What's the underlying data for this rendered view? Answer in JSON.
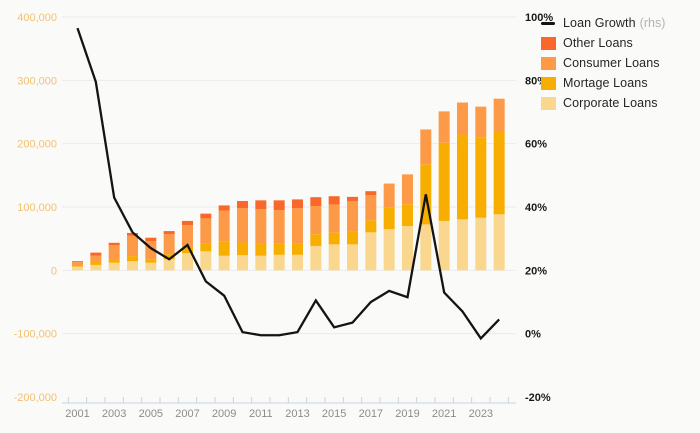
{
  "chart_data": {
    "type": "combo-stacked-bar-line",
    "title": "",
    "x": [
      2001,
      2002,
      2003,
      2004,
      2005,
      2006,
      2007,
      2008,
      2009,
      2010,
      2011,
      2012,
      2013,
      2014,
      2015,
      2016,
      2017,
      2018,
      2019,
      2020,
      2021,
      2022,
      2023,
      2024
    ],
    "x_tick_labels": [
      "2001",
      "2003",
      "2005",
      "2007",
      "2009",
      "2011",
      "2013",
      "2015",
      "2017",
      "2019",
      "2021",
      "2023"
    ],
    "bar_series": [
      {
        "name": "Corporate Loans",
        "color": "#fad78f",
        "values": [
          6000,
          8500,
          12000,
          14500,
          12000,
          17500,
          27000,
          30000,
          23000,
          24000,
          23000,
          24500,
          24500,
          38500,
          41000,
          41000,
          60000,
          65000,
          70000,
          72500,
          78000,
          80500,
          83000,
          88500
        ]
      },
      {
        "name": "Mortage Loans",
        "color": "#f8ae00",
        "values": [
          2500,
          5500,
          5000,
          8000,
          5500,
          8000,
          9000,
          13000,
          23000,
          20000,
          19500,
          18500,
          18500,
          18500,
          18500,
          21000,
          19000,
          34000,
          34500,
          95000,
          123500,
          134000,
          126500,
          131500
        ]
      },
      {
        "name": "Consumer Loans",
        "color": "#fd9a47",
        "values": [
          4500,
          9000,
          22500,
          32000,
          28500,
          31500,
          35500,
          39000,
          48500,
          54000,
          54000,
          52000,
          55000,
          44500,
          44500,
          47500,
          39500,
          38000,
          47000,
          55000,
          49500,
          50500,
          49000,
          51000
        ]
      },
      {
        "name": "Other Loans",
        "color": "#f9682a",
        "values": [
          1500,
          5000,
          4000,
          4500,
          5500,
          5000,
          6500,
          7500,
          8000,
          11500,
          14000,
          15500,
          14000,
          14000,
          13000,
          6500,
          6500,
          0,
          0,
          0,
          0,
          0,
          0,
          0
        ]
      }
    ],
    "line_series": {
      "name": "Loan Growth",
      "suffix": "(rhs)",
      "color": "#141414",
      "axis": "right",
      "values": [
        96.5,
        79.5,
        43,
        32,
        27,
        23.5,
        28,
        16.5,
        12,
        0.5,
        -0.5,
        -0.5,
        0.5,
        10.5,
        2,
        3.5,
        10,
        13.5,
        11.5,
        44,
        13,
        7,
        -1.5,
        4.5
      ]
    },
    "left_axis": {
      "min": -200000,
      "max": 400000,
      "step": 100000,
      "tick_labels": [
        "400,000",
        "300,000",
        "200,000",
        "100,000",
        "0",
        "-100,000",
        "-200,000"
      ],
      "text_color": "#f3c172"
    },
    "right_axis": {
      "min": -20,
      "max": 100,
      "step": 20,
      "tick_labels": [
        "100%",
        "80%",
        "60%",
        "40%",
        "20%",
        "0%",
        "-20%"
      ],
      "text_color": "#1a1a1a"
    },
    "legend_position": "top-right",
    "grid": true,
    "legend": [
      {
        "label": "Loan Growth",
        "suffix": "(rhs)",
        "type": "line",
        "color": "#141414"
      },
      {
        "label": "Other Loans",
        "type": "swatch",
        "color": "#f9682a"
      },
      {
        "label": "Consumer Loans",
        "type": "swatch",
        "color": "#fd9a47"
      },
      {
        "label": "Mortage Loans",
        "type": "swatch",
        "color": "#f8ae00"
      },
      {
        "label": "Corporate Loans",
        "type": "swatch",
        "color": "#fad78f"
      }
    ]
  },
  "style": {
    "background": "#fafaf8",
    "grid_color": "#ebebeb",
    "axis_line_color": "#c9d4e4",
    "x_label_color": "#8c8c8c"
  }
}
